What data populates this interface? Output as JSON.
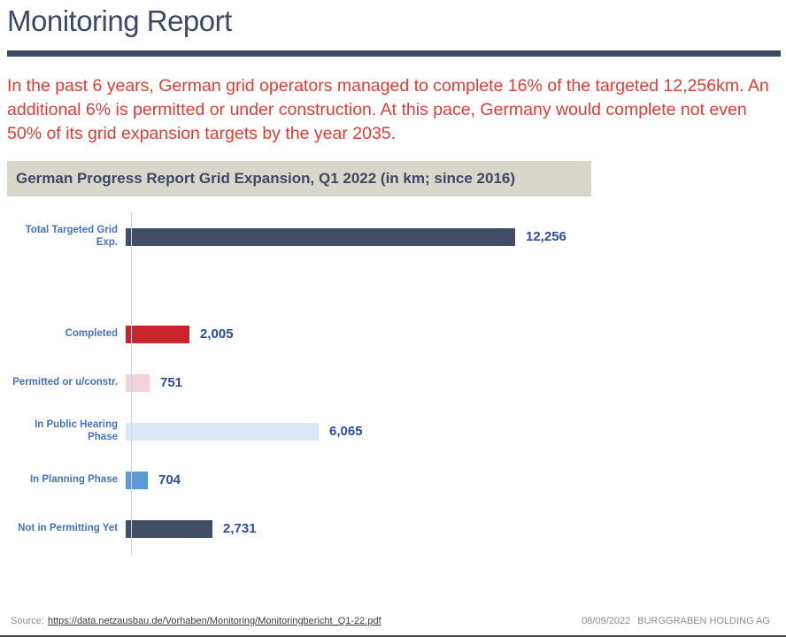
{
  "page": {
    "title": "Monitoring Report",
    "intro_text": "In the past 6 years, German grid operators managed to complete 16% of the targeted 12,256km. An additional 6% is permitted or under construction. At this pace, Germany would complete not even 50% of its grid expansion targets by the year 2035.",
    "footer": {
      "source_label": "Source:",
      "source_link": "https://data.netzausbau.de/Vorhaben/Monitoring/Monitoringbericht_Q1-22.pdf",
      "date": "08/09/2022",
      "company": "BURGGRABEN HOLDING AG"
    }
  },
  "chart_data": {
    "type": "bar",
    "orientation": "horizontal",
    "title": "German Progress Report Grid Expansion, Q1 2022 (in km; since 2016)",
    "unit": "km",
    "categories": [
      "Total Targeted Grid Exp.",
      "Completed",
      "Permitted or u/constr.",
      "In Public Hearing Phase",
      "In Planning Phase",
      "Not in Permitting Yet"
    ],
    "values": [
      12256,
      2005,
      751,
      6065,
      704,
      2731
    ],
    "value_labels": [
      "12,256",
      "2,005",
      "751",
      "6,065",
      "704",
      "2,731"
    ],
    "colors": [
      "#414e66",
      "#c9242c",
      "#f3d3d7",
      "#dbe7f6",
      "#5b9bd5",
      "#414e66"
    ],
    "xlim": [
      0,
      12256
    ],
    "grid": false,
    "legend": "none",
    "gap_after_first_row": true,
    "accent_colors": {
      "category_label": "#4472c4",
      "value_label": "#2a4da3",
      "axis_line": "#c9d5ea",
      "title_band_bg": "#d9d6cb",
      "title_text": "#3c4a63"
    }
  }
}
